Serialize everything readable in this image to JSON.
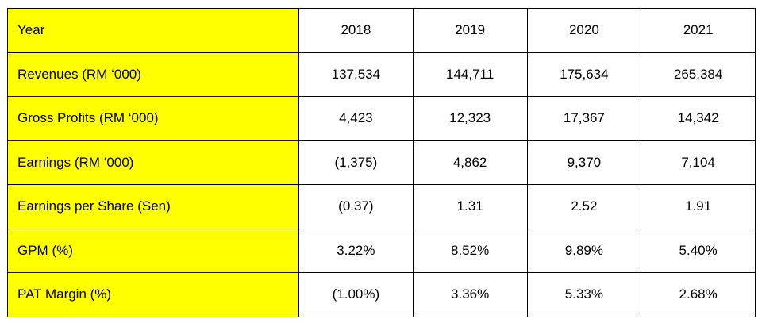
{
  "header": {
    "label": "Year",
    "years": [
      "2018",
      "2019",
      "2020",
      "2021"
    ]
  },
  "rows": [
    {
      "label": "Revenues (RM ‘000)",
      "values": [
        "137,534",
        "144,711",
        "175,634",
        "265,384"
      ]
    },
    {
      "label": "Gross Profits (RM ‘000)",
      "values": [
        "4,423",
        "12,323",
        "17,367",
        "14,342"
      ]
    },
    {
      "label": "Earnings (RM ‘000)",
      "values": [
        "(1,375)",
        "4,862",
        "9,370",
        "7,104"
      ]
    },
    {
      "label": "Earnings per Share (Sen)",
      "values": [
        "(0.37)",
        "1.31",
        "2.52",
        "1.91"
      ]
    },
    {
      "label": "GPM (%)",
      "values": [
        "3.22%",
        "8.52%",
        "9.89%",
        "5.40%"
      ]
    },
    {
      "label": "PAT Margin (%)",
      "values": [
        "(1.00%)",
        "3.36%",
        "5.33%",
        "2.68%"
      ]
    }
  ],
  "colors": {
    "label_fill": "#ffff00",
    "value_fill": "#ffffff",
    "border": "#000000"
  }
}
